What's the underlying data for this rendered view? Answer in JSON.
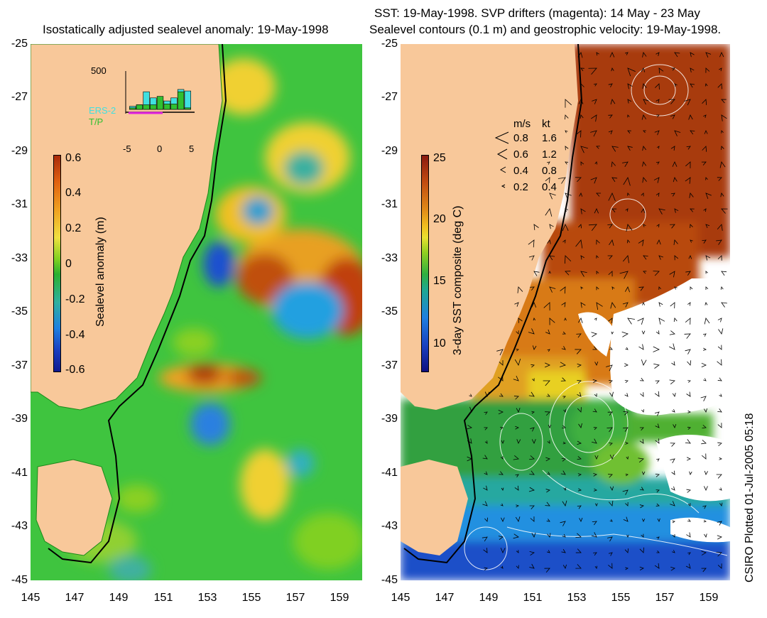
{
  "left_panel": {
    "title": "Isostatically adjusted sealevel anomaly: 19-May-1998",
    "y_ticks": [
      "-25",
      "-27",
      "-29",
      "-31",
      "-33",
      "-35",
      "-37",
      "-39",
      "-41",
      "-43",
      "-45"
    ],
    "x_ticks": [
      "145",
      "147",
      "149",
      "151",
      "153",
      "155",
      "157",
      "159"
    ],
    "colorbar": {
      "title": "Sealevel anomaly (m)",
      "ticks": [
        "0.6",
        "0.4",
        "0.2",
        "0",
        "-0.2",
        "-0.4",
        "-0.6"
      ]
    },
    "inset": {
      "y_max": "500",
      "x_ticks": [
        "-5",
        "0",
        "5"
      ],
      "legend": [
        {
          "name": "ERS-2",
          "color": "#40e0e0"
        },
        {
          "name": "T/P",
          "color": "#30c030"
        }
      ],
      "chart_data": {
        "type": "bar",
        "x": [
          -4,
          -3,
          -2,
          -1,
          0,
          1,
          2,
          3,
          4
        ],
        "series": [
          {
            "name": "ERS-2",
            "values": [
              40,
              60,
              230,
              150,
              120,
              110,
              150,
              260,
              240
            ]
          },
          {
            "name": "T/P",
            "values": [
              20,
              60,
              60,
              60,
              170,
              70,
              70,
              230,
              20
            ]
          }
        ],
        "ylim": [
          0,
          500
        ],
        "xlim": [
          -5,
          5
        ]
      }
    }
  },
  "right_panel": {
    "title_line1": "SST: 19-May-1998. SVP drifters (magenta): 14 May - 23 May",
    "title_line2": "Sealevel contours (0.1 m) and geostrophic velocity: 19-May-1998.",
    "y_ticks": [
      "-25",
      "-27",
      "-29",
      "-31",
      "-33",
      "-35",
      "-37",
      "-39",
      "-41",
      "-43",
      "-45"
    ],
    "x_ticks": [
      "145",
      "147",
      "149",
      "151",
      "153",
      "155",
      "157",
      "159"
    ],
    "colorbar": {
      "title": "3-day SST composite (deg C)",
      "ticks": [
        "25",
        "20",
        "15",
        "10"
      ]
    },
    "velocity_legend": {
      "header_ms": "m/s",
      "header_kt": "kt",
      "rows": [
        {
          "ms": "0.8",
          "kt": "1.6"
        },
        {
          "ms": "0.6",
          "kt": "1.2"
        },
        {
          "ms": "0.4",
          "kt": "0.8"
        },
        {
          "ms": "0.2",
          "kt": "0.4"
        }
      ]
    }
  },
  "credit": "CSIRO Plotted 01-Jul-2005 05:18",
  "colors": {
    "land": "#f8c89a",
    "ocean_base": "#3fc43f",
    "anomaly_high": "#a82a0a",
    "anomaly_low": "#1a3fc0",
    "coast_line": "#000000"
  }
}
